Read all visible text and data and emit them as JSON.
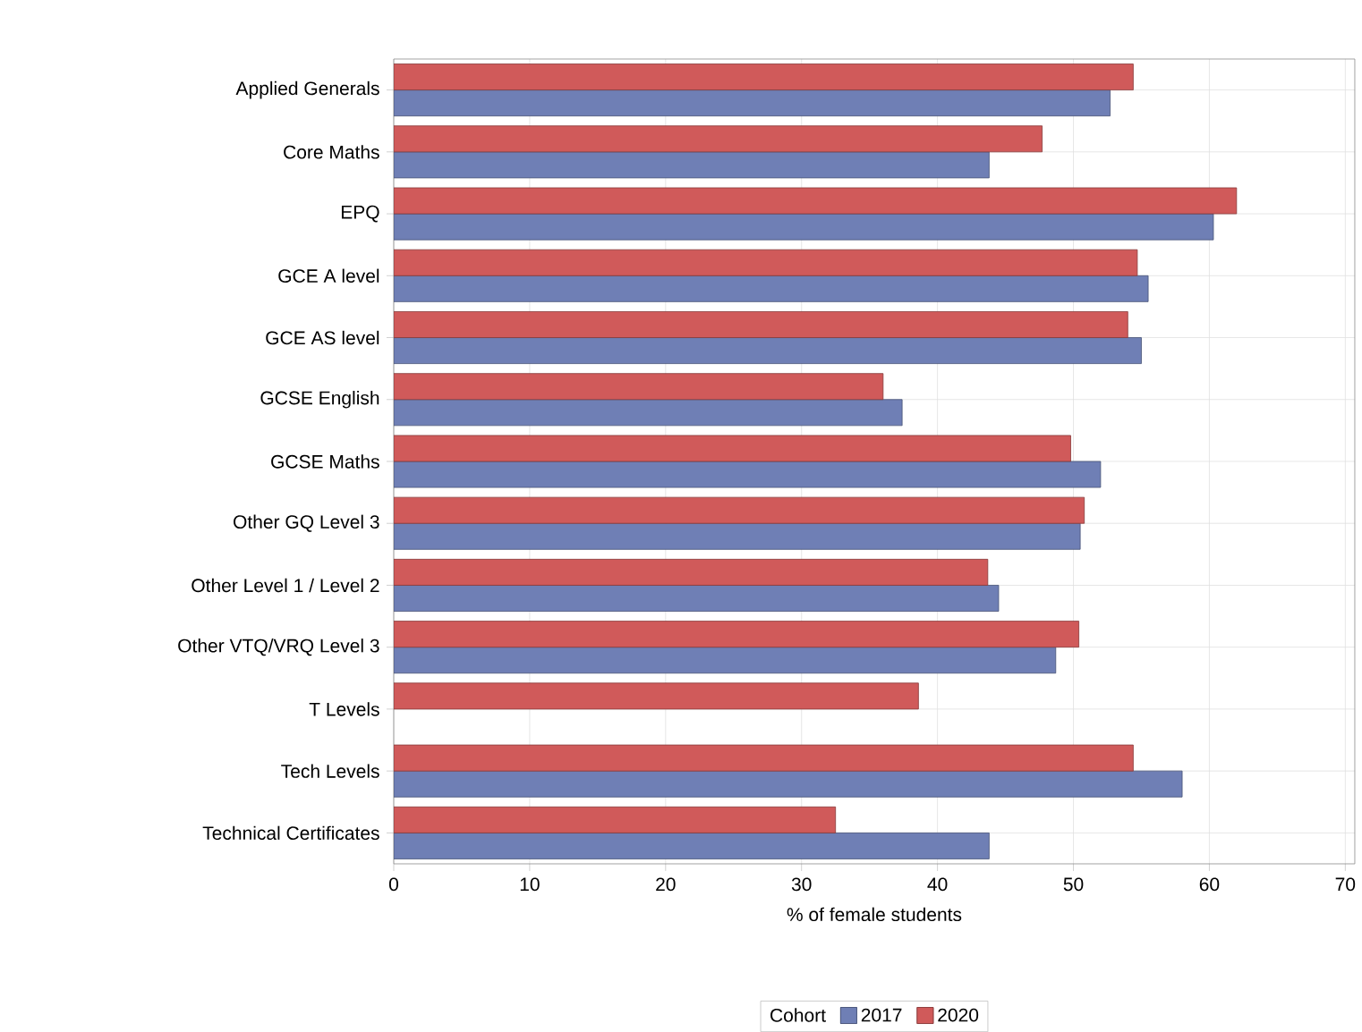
{
  "chart_data": {
    "type": "bar",
    "orientation": "horizontal",
    "xlabel": "% of female students",
    "legend_title": "Cohort",
    "categories": [
      "Applied Generals",
      "Core Maths",
      "EPQ",
      "GCE A level",
      "GCE AS level",
      "GCSE English",
      "GCSE Maths",
      "Other GQ Level 3",
      "Other Level 1 / Level 2",
      "Other VTQ/VRQ Level 3",
      "T Levels",
      "Tech Levels",
      "Technical Certificates"
    ],
    "series": [
      {
        "name": "2017",
        "color": "#6f7fb5",
        "values": [
          52.7,
          43.8,
          60.3,
          55.5,
          55.0,
          37.4,
          52.0,
          50.5,
          44.5,
          48.7,
          null,
          58.0,
          43.8
        ]
      },
      {
        "name": "2020",
        "color": "#d05a5a",
        "values": [
          54.4,
          47.7,
          62.0,
          54.7,
          54.0,
          36.0,
          49.8,
          50.8,
          43.7,
          50.4,
          38.6,
          54.4,
          32.5
        ]
      }
    ],
    "xlim": [
      0,
      70.7
    ],
    "xticks": [
      0,
      10,
      20,
      30,
      40,
      50,
      60,
      70
    ],
    "grid": true,
    "legend": "bottom"
  }
}
